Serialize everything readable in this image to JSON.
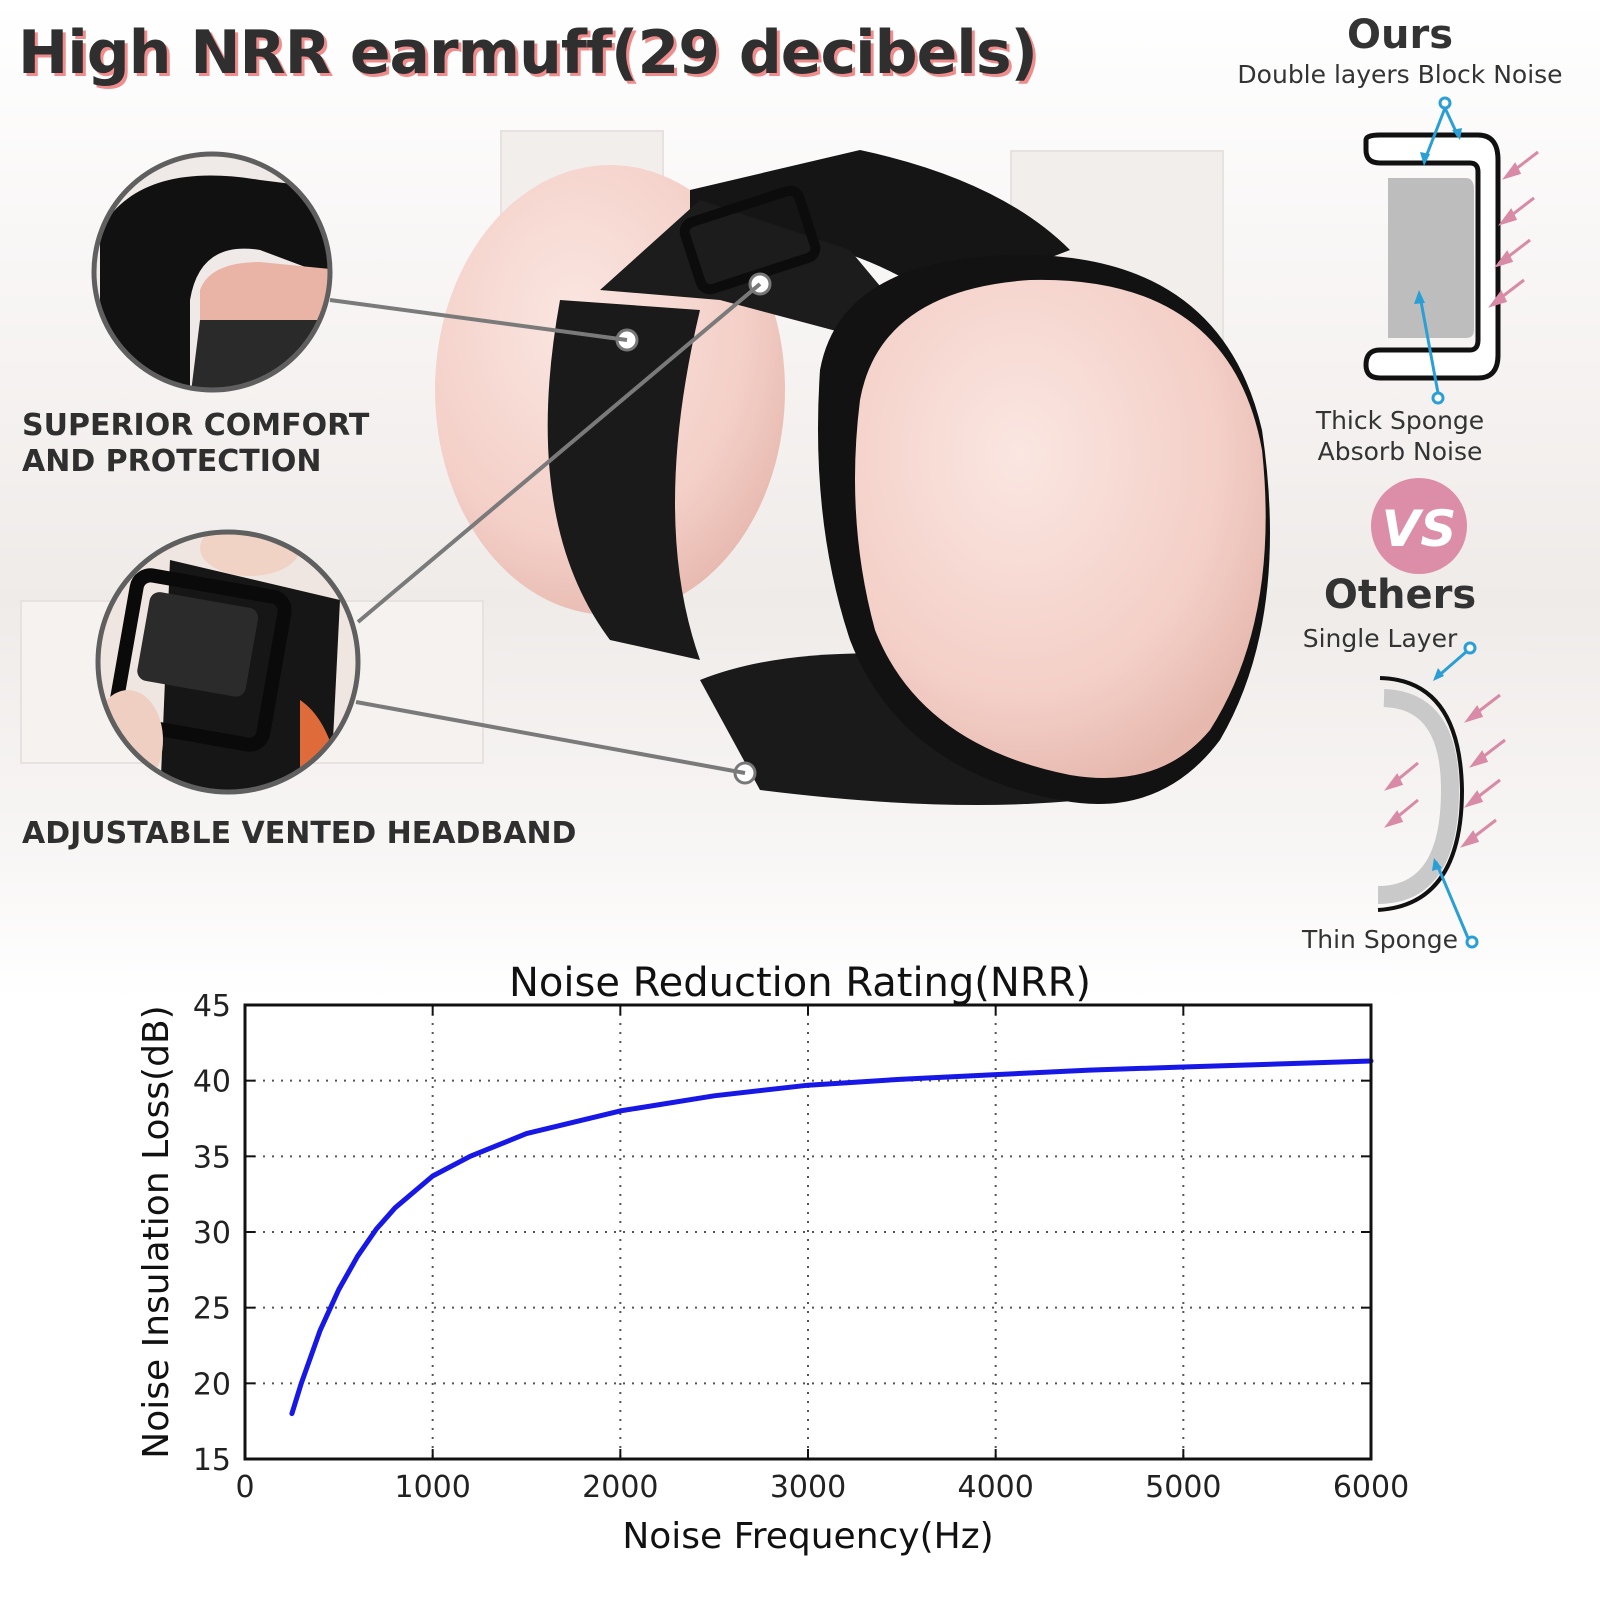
{
  "title": "High NRR earmuff(29 decibels)",
  "features": [
    {
      "line1": "SUPERIOR COMFORT",
      "line2": "AND PROTECTION"
    },
    {
      "line1": "ADJUSTABLE VENTED HEADBAND",
      "line2": ""
    }
  ],
  "comparison": {
    "ours_heading": "Ours",
    "ours_caption": "Double layers Block Noise",
    "ours_sponge_line1": "Thick Sponge",
    "ours_sponge_line2": "Absorb Noise",
    "vs_badge": "VS",
    "others_heading": "Others",
    "others_caption": "Single Layer",
    "others_sponge": "Thin Sponge"
  },
  "colors": {
    "title_shadow": "#f08c8c",
    "earcup": "#f4d3cc",
    "vs_badge": "#dc8ea8",
    "arrow_pink": "#d88aa6",
    "callout_blue": "#2a9fd6",
    "curve": "#1717e6"
  },
  "icons": [
    "cushion-detail-photo",
    "buckle-detail-photo",
    "earmuff-product-photo"
  ],
  "chart_data": {
    "type": "line",
    "title": "Noise Reduction Rating(NRR)",
    "xlabel": "Noise Frequency(Hz)",
    "ylabel": "Noise Insulation Loss(dB)",
    "xlim": [
      0,
      6000
    ],
    "ylim": [
      15,
      45
    ],
    "xticks": [
      0,
      1000,
      2000,
      3000,
      4000,
      5000,
      6000
    ],
    "yticks": [
      15,
      20,
      25,
      30,
      35,
      40,
      45
    ],
    "grid": true,
    "legend": "none",
    "series": [
      {
        "x": [
          250,
          300,
          400,
          500,
          600,
          700,
          800,
          1000,
          1200,
          1500,
          2000,
          2500,
          3000,
          3500,
          4000,
          4500,
          5000,
          5500,
          6000
        ],
        "y": [
          18.0,
          20.0,
          23.5,
          26.2,
          28.4,
          30.2,
          31.6,
          33.7,
          35.0,
          36.5,
          38.0,
          39.0,
          39.7,
          40.1,
          40.4,
          40.7,
          40.9,
          41.1,
          41.3
        ]
      }
    ]
  }
}
